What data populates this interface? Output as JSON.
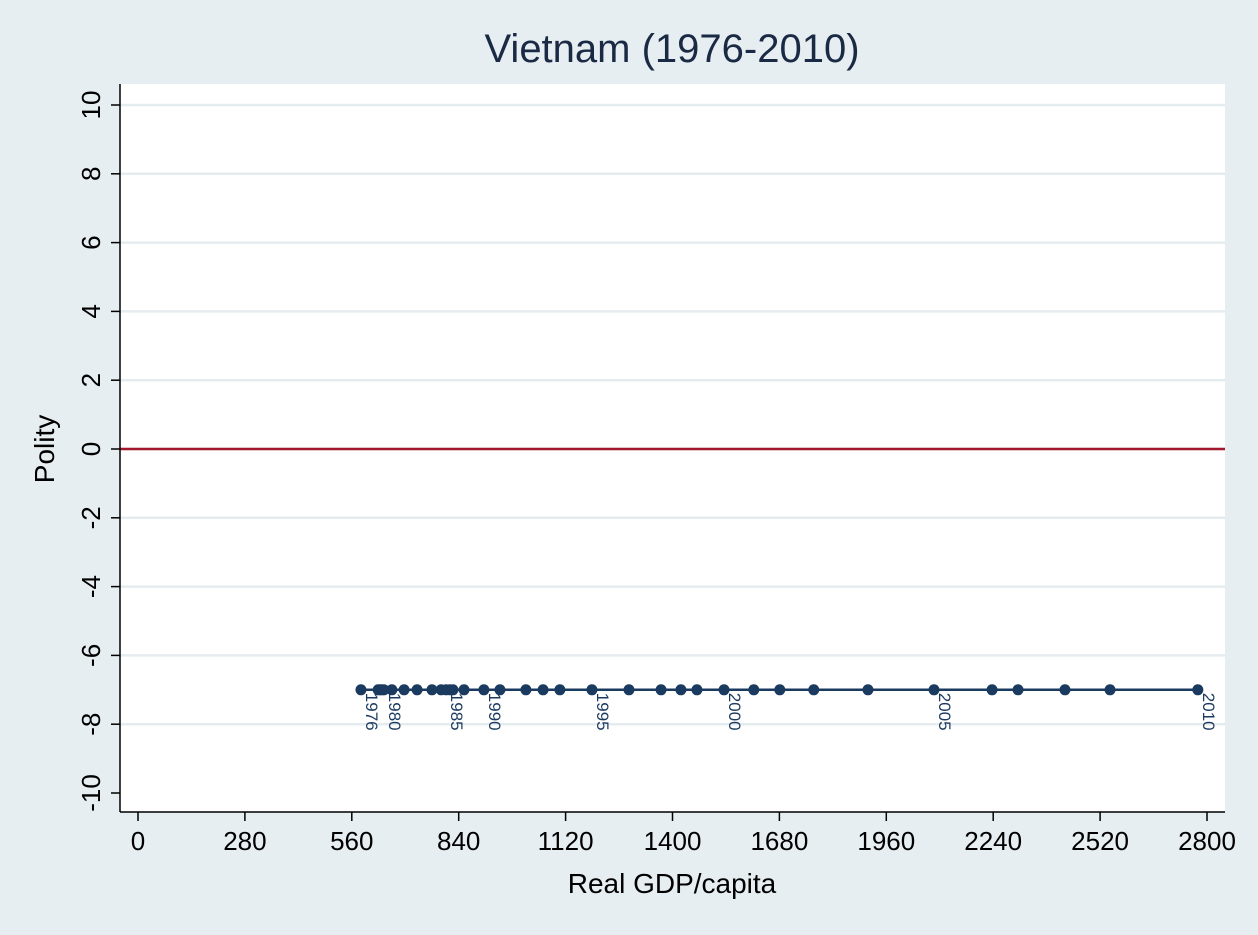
{
  "chart_data": {
    "type": "scatter",
    "title": "Vietnam (1976-2010)",
    "xlabel": "Real GDP/capita",
    "ylabel": "Polity",
    "xlim": [
      0,
      2800
    ],
    "ylim": [
      -10,
      10
    ],
    "xticks": [
      0,
      280,
      560,
      840,
      1120,
      1400,
      1680,
      1960,
      2240,
      2520,
      2800
    ],
    "yticks": [
      10,
      8,
      6,
      4,
      2,
      0,
      -2,
      -4,
      -6,
      -8,
      -10
    ],
    "grid": true,
    "reference_line": {
      "y": 0,
      "color": "#a3162c"
    },
    "series_color": "#1b3a5f",
    "connected": true,
    "points": [
      {
        "year": 1976,
        "x": 584,
        "y": -7,
        "label": "1976"
      },
      {
        "year": 1977,
        "x": 629,
        "y": -7
      },
      {
        "year": 1978,
        "x": 634,
        "y": -7
      },
      {
        "year": 1979,
        "x": 639,
        "y": -7
      },
      {
        "year": 1980,
        "x": 644,
        "y": -7,
        "label": "1980"
      },
      {
        "year": 1981,
        "x": 665,
        "y": -7
      },
      {
        "year": 1982,
        "x": 697,
        "y": -7
      },
      {
        "year": 1983,
        "x": 731,
        "y": -7
      },
      {
        "year": 1984,
        "x": 770,
        "y": -7
      },
      {
        "year": 1985,
        "x": 807,
        "y": -7,
        "label": "1985"
      },
      {
        "year": 1986,
        "x": 794,
        "y": -7
      },
      {
        "year": 1987,
        "x": 817,
        "y": -7
      },
      {
        "year": 1988,
        "x": 825,
        "y": -7
      },
      {
        "year": 1989,
        "x": 854,
        "y": -7
      },
      {
        "year": 1990,
        "x": 906,
        "y": -7,
        "label": "1990"
      },
      {
        "year": 1991,
        "x": 948,
        "y": -7
      },
      {
        "year": 1992,
        "x": 1016,
        "y": -7
      },
      {
        "year": 1993,
        "x": 1061,
        "y": -7
      },
      {
        "year": 1994,
        "x": 1105,
        "y": -7
      },
      {
        "year": 1995,
        "x": 1189,
        "y": -7,
        "label": "1995"
      },
      {
        "year": 1996,
        "x": 1286,
        "y": -7
      },
      {
        "year": 1997,
        "x": 1370,
        "y": -7
      },
      {
        "year": 1998,
        "x": 1422,
        "y": -7
      },
      {
        "year": 1999,
        "x": 1464,
        "y": -7
      },
      {
        "year": 2000,
        "x": 1535,
        "y": -7,
        "label": "2000"
      },
      {
        "year": 2001,
        "x": 1613,
        "y": -7
      },
      {
        "year": 2002,
        "x": 1681,
        "y": -7
      },
      {
        "year": 2003,
        "x": 1770,
        "y": -7
      },
      {
        "year": 2004,
        "x": 1912,
        "y": -7
      },
      {
        "year": 2005,
        "x": 2085,
        "y": -7,
        "label": "2005"
      },
      {
        "year": 2006,
        "x": 2237,
        "y": -7
      },
      {
        "year": 2007,
        "x": 2305,
        "y": -7
      },
      {
        "year": 2008,
        "x": 2428,
        "y": -7
      },
      {
        "year": 2009,
        "x": 2546,
        "y": -7
      },
      {
        "year": 2010,
        "x": 2776,
        "y": -7,
        "label": "2010"
      }
    ]
  }
}
